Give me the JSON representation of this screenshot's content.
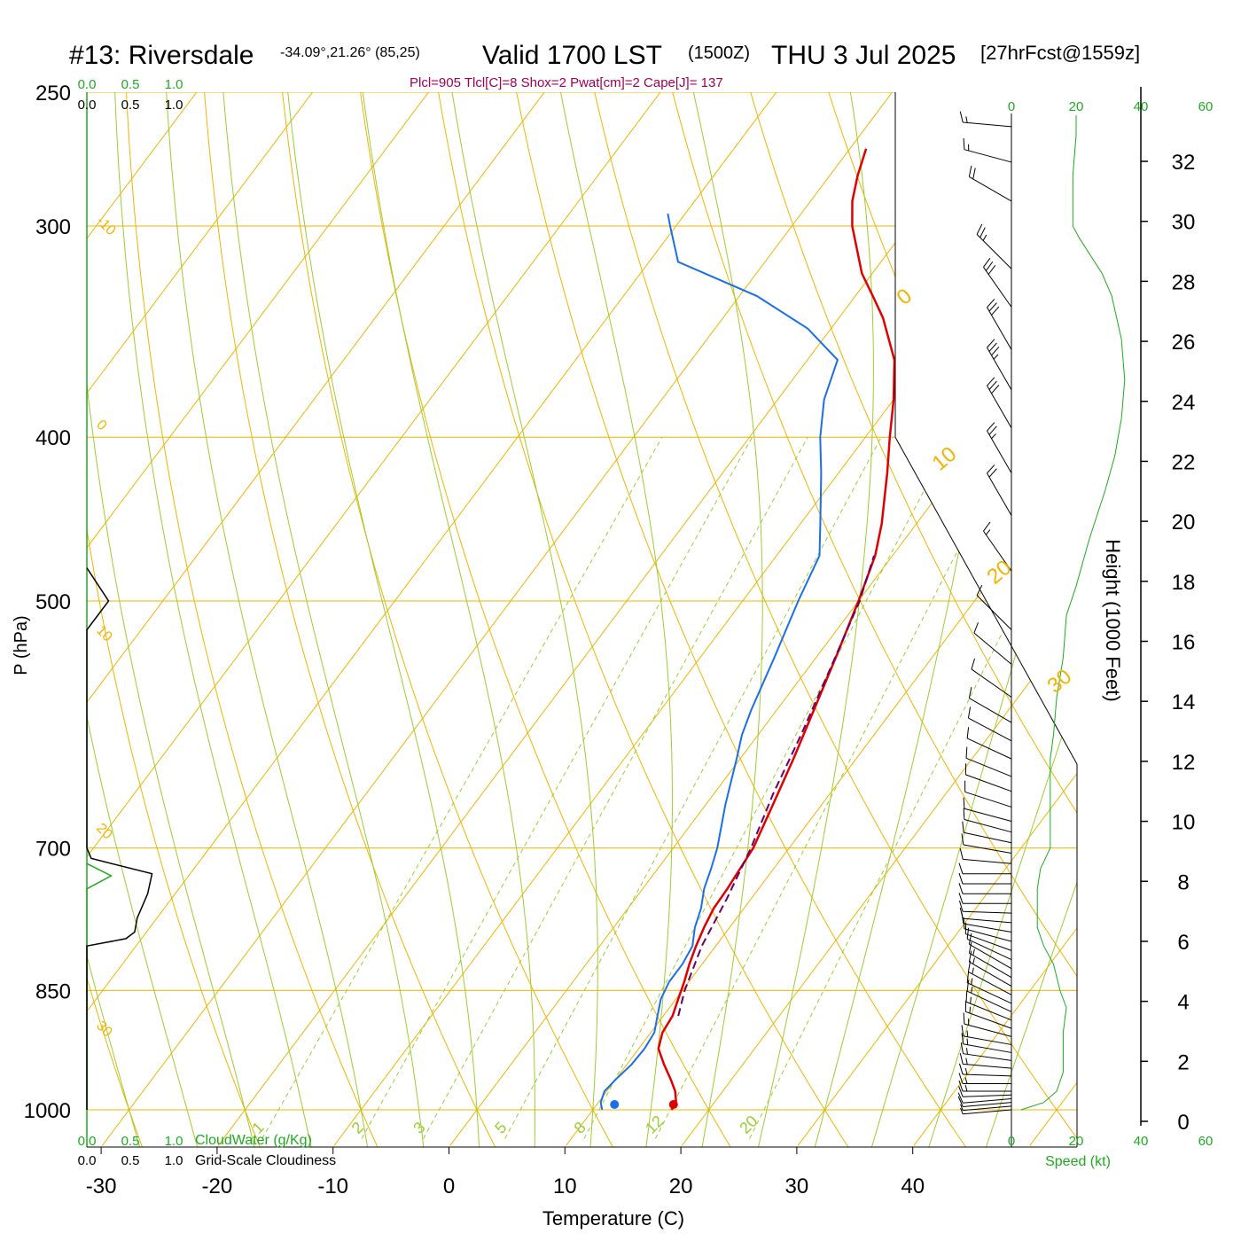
{
  "header": {
    "station": "#13: Riversdale",
    "coords": "-34.09°,21.26° (85,25)",
    "valid": "Valid 1700 LST",
    "zulu": "(1500Z)",
    "date": "THU 3 Jul 2025",
    "forecast": "[27hrFcst@1559z]",
    "indices": "Plcl=905 Tlcl[C]=8 Shox=2 Pwat[cm]=2 Cape[J]= 137"
  },
  "colors": {
    "temperature": "#e00000",
    "dewpoint": "#1a6fe8",
    "parcel": "#660066",
    "isobar_isotherm": "#f0b400",
    "adiabat": "#9acd32",
    "cloudwater": "#1faa1f",
    "indices_text": "#a0005a",
    "wind": "#000000"
  },
  "chart_data": {
    "type": "skew-t",
    "xlabel": "Temperature (C)",
    "ylabel": "P (hPa)",
    "right_ylabel": "Height (1000 Feet)",
    "x_ticks": [
      "-30",
      "-20",
      "-10",
      "0",
      "10",
      "20",
      "30",
      "40"
    ],
    "x_tick_values": [
      -30,
      -20,
      -10,
      0,
      10,
      20,
      30,
      40
    ],
    "y_ticks": [
      "250",
      "300",
      "400",
      "500",
      "700",
      "850",
      "1000"
    ],
    "y_tick_values": [
      250,
      300,
      400,
      500,
      700,
      850,
      1000
    ],
    "height_ticks": [
      "0",
      "2",
      "4",
      "6",
      "8",
      "10",
      "12",
      "14",
      "16",
      "18",
      "20",
      "22",
      "24",
      "26",
      "28",
      "30",
      "32"
    ],
    "height_tick_values": [
      0,
      2,
      4,
      6,
      8,
      10,
      12,
      14,
      16,
      18,
      20,
      22,
      24,
      26,
      28,
      30,
      32
    ],
    "dry_adiabat_labels": [
      "-10",
      "0",
      "10",
      "20",
      "30",
      "0",
      "10",
      "20",
      "30"
    ],
    "mixing_ratio_labels": [
      "1",
      "2",
      "3",
      "5",
      "8",
      "12",
      "20"
    ],
    "cloud_scale": {
      "cloudwater_ticks": [
        "0.0",
        "0.5",
        "1.0"
      ],
      "cloudiness_ticks": [
        "0.0",
        "0.5",
        "1.0"
      ],
      "cloudwater_label": "CloudWater (g/Kg)",
      "cloudiness_label": "Grid-Scale Cloudiness"
    },
    "speed_scale": {
      "ticks": [
        "0",
        "20",
        "40",
        "60"
      ],
      "label": "Speed (kt)"
    },
    "series": [
      {
        "name": "Temperature",
        "points": [
          [
            1000,
            16.8
          ],
          [
            990,
            16.7
          ],
          [
            975,
            15.9
          ],
          [
            960,
            14.8
          ],
          [
            940,
            13.2
          ],
          [
            920,
            11.7
          ],
          [
            900,
            11.0
          ],
          [
            880,
            10.8
          ],
          [
            860,
            10.2
          ],
          [
            840,
            9.6
          ],
          [
            820,
            8.9
          ],
          [
            800,
            8.3
          ],
          [
            780,
            7.8
          ],
          [
            760,
            7.4
          ],
          [
            740,
            7.3
          ],
          [
            720,
            7.1
          ],
          [
            700,
            6.9
          ],
          [
            660,
            5.8
          ],
          [
            620,
            4.6
          ],
          [
            580,
            3.2
          ],
          [
            540,
            1.7
          ],
          [
            500,
            0.0
          ],
          [
            470,
            -1.5
          ],
          [
            450,
            -3.0
          ],
          [
            420,
            -5.8
          ],
          [
            400,
            -7.9
          ],
          [
            380,
            -10.0
          ],
          [
            360,
            -12.5
          ],
          [
            340,
            -16.2
          ],
          [
            330,
            -18.5
          ],
          [
            320,
            -20.9
          ],
          [
            300,
            -24.8
          ],
          [
            290,
            -26.4
          ],
          [
            280,
            -27.6
          ],
          [
            270,
            -28.6
          ]
        ]
      },
      {
        "name": "Dewpoint",
        "points": [
          [
            1000,
            10.8
          ],
          [
            990,
            10.2
          ],
          [
            975,
            9.8
          ],
          [
            960,
            10.0
          ],
          [
            940,
            10.4
          ],
          [
            920,
            10.5
          ],
          [
            900,
            10.3
          ],
          [
            880,
            9.5
          ],
          [
            860,
            8.7
          ],
          [
            840,
            8.3
          ],
          [
            820,
            8.3
          ],
          [
            800,
            8.0
          ],
          [
            780,
            7.0
          ],
          [
            760,
            6.3
          ],
          [
            740,
            5.3
          ],
          [
            720,
            4.6
          ],
          [
            700,
            3.8
          ],
          [
            660,
            1.7
          ],
          [
            620,
            -0.3
          ],
          [
            600,
            -1.4
          ],
          [
            580,
            -2.2
          ],
          [
            540,
            -3.6
          ],
          [
            500,
            -5.2
          ],
          [
            470,
            -6.3
          ],
          [
            450,
            -8.3
          ],
          [
            420,
            -11.5
          ],
          [
            400,
            -13.9
          ],
          [
            380,
            -16.0
          ],
          [
            360,
            -17.4
          ],
          [
            345,
            -22.0
          ],
          [
            330,
            -28.5
          ],
          [
            315,
            -37.5
          ],
          [
            300,
            -40.5
          ],
          [
            295,
            -41.5
          ]
        ]
      },
      {
        "name": "Parcel",
        "points": [
          [
            880,
            11.3
          ],
          [
            850,
            10.2
          ],
          [
            800,
            8.8
          ],
          [
            750,
            7.9
          ],
          [
            700,
            6.7
          ],
          [
            650,
            5.1
          ],
          [
            600,
            3.7
          ],
          [
            550,
            2.0
          ],
          [
            500,
            0.1
          ],
          [
            470,
            -1.6
          ]
        ]
      }
    ],
    "cloudwater_profile": [
      [
        1000,
        0.0
      ],
      [
        740,
        0.0
      ],
      [
        727,
        0.28
      ],
      [
        715,
        0.0
      ]
    ],
    "cloudiness_profile": [
      [
        1000,
        0.0
      ],
      [
        800,
        0.0
      ],
      [
        792,
        0.45
      ],
      [
        785,
        0.55
      ],
      [
        770,
        0.58
      ],
      [
        745,
        0.7
      ],
      [
        725,
        0.75
      ],
      [
        710,
        0.05
      ],
      [
        700,
        0.0
      ],
      [
        520,
        0.0
      ],
      [
        500,
        0.25
      ],
      [
        478,
        0.0
      ]
    ],
    "wind_speed_profile": [
      [
        1000,
        3
      ],
      [
        990,
        10
      ],
      [
        975,
        14
      ],
      [
        950,
        16
      ],
      [
        920,
        16
      ],
      [
        900,
        16
      ],
      [
        870,
        17
      ],
      [
        850,
        15
      ],
      [
        820,
        13
      ],
      [
        800,
        10
      ],
      [
        780,
        8
      ],
      [
        760,
        8
      ],
      [
        740,
        8
      ],
      [
        720,
        9
      ],
      [
        700,
        12
      ],
      [
        680,
        12
      ],
      [
        650,
        12
      ],
      [
        620,
        12
      ],
      [
        600,
        13
      ],
      [
        570,
        14
      ],
      [
        540,
        16
      ],
      [
        510,
        17
      ],
      [
        490,
        20
      ],
      [
        460,
        24
      ],
      [
        430,
        29
      ],
      [
        410,
        32
      ],
      [
        390,
        34
      ],
      [
        370,
        35
      ],
      [
        350,
        34
      ],
      [
        330,
        31
      ],
      [
        320,
        28
      ],
      [
        305,
        21
      ],
      [
        300,
        19
      ],
      [
        290,
        19
      ],
      [
        280,
        19
      ],
      [
        265,
        20
      ],
      [
        258,
        20
      ]
    ],
    "wind_barbs": [
      {
        "p": 1000,
        "dir": 265,
        "spd": 5
      },
      {
        "p": 995,
        "dir": 265,
        "spd": 5
      },
      {
        "p": 990,
        "dir": 265,
        "spd": 10
      },
      {
        "p": 985,
        "dir": 265,
        "spd": 10
      },
      {
        "p": 980,
        "dir": 268,
        "spd": 10
      },
      {
        "p": 975,
        "dir": 270,
        "spd": 15
      },
      {
        "p": 965,
        "dir": 270,
        "spd": 15
      },
      {
        "p": 955,
        "dir": 272,
        "spd": 15
      },
      {
        "p": 945,
        "dir": 275,
        "spd": 15
      },
      {
        "p": 935,
        "dir": 278,
        "spd": 15
      },
      {
        "p": 925,
        "dir": 280,
        "spd": 15
      },
      {
        "p": 915,
        "dir": 280,
        "spd": 15
      },
      {
        "p": 905,
        "dir": 285,
        "spd": 15
      },
      {
        "p": 895,
        "dir": 290,
        "spd": 15
      },
      {
        "p": 885,
        "dir": 292,
        "spd": 15
      },
      {
        "p": 875,
        "dir": 295,
        "spd": 15
      },
      {
        "p": 865,
        "dir": 295,
        "spd": 15
      },
      {
        "p": 855,
        "dir": 298,
        "spd": 15
      },
      {
        "p": 845,
        "dir": 300,
        "spd": 15
      },
      {
        "p": 835,
        "dir": 300,
        "spd": 15
      },
      {
        "p": 825,
        "dir": 300,
        "spd": 10
      },
      {
        "p": 815,
        "dir": 295,
        "spd": 10
      },
      {
        "p": 805,
        "dir": 290,
        "spd": 10
      },
      {
        "p": 795,
        "dir": 285,
        "spd": 10
      },
      {
        "p": 785,
        "dir": 280,
        "spd": 10
      },
      {
        "p": 775,
        "dir": 275,
        "spd": 10
      },
      {
        "p": 765,
        "dir": 272,
        "spd": 10
      },
      {
        "p": 755,
        "dir": 270,
        "spd": 10
      },
      {
        "p": 745,
        "dir": 270,
        "spd": 10
      },
      {
        "p": 735,
        "dir": 270,
        "spd": 10
      },
      {
        "p": 725,
        "dir": 270,
        "spd": 10
      },
      {
        "p": 715,
        "dir": 275,
        "spd": 10
      },
      {
        "p": 705,
        "dir": 280,
        "spd": 10
      },
      {
        "p": 695,
        "dir": 282,
        "spd": 10
      },
      {
        "p": 685,
        "dir": 285,
        "spd": 10
      },
      {
        "p": 675,
        "dir": 285,
        "spd": 10
      },
      {
        "p": 662,
        "dir": 288,
        "spd": 10
      },
      {
        "p": 648,
        "dir": 290,
        "spd": 10
      },
      {
        "p": 635,
        "dir": 292,
        "spd": 10
      },
      {
        "p": 620,
        "dir": 295,
        "spd": 10
      },
      {
        "p": 605,
        "dir": 298,
        "spd": 10
      },
      {
        "p": 590,
        "dir": 300,
        "spd": 10
      },
      {
        "p": 570,
        "dir": 305,
        "spd": 10
      },
      {
        "p": 545,
        "dir": 310,
        "spd": 10
      },
      {
        "p": 520,
        "dir": 315,
        "spd": 10
      },
      {
        "p": 480,
        "dir": 325,
        "spd": 15
      },
      {
        "p": 445,
        "dir": 330,
        "spd": 20
      },
      {
        "p": 420,
        "dir": 330,
        "spd": 25
      },
      {
        "p": 395,
        "dir": 330,
        "spd": 30
      },
      {
        "p": 375,
        "dir": 330,
        "spd": 35
      },
      {
        "p": 355,
        "dir": 330,
        "spd": 30
      },
      {
        "p": 335,
        "dir": 325,
        "spd": 30
      },
      {
        "p": 318,
        "dir": 315,
        "spd": 25
      },
      {
        "p": 290,
        "dir": 300,
        "spd": 20
      },
      {
        "p": 275,
        "dir": 285,
        "spd": 15
      },
      {
        "p": 262,
        "dir": 275,
        "spd": 15
      }
    ]
  }
}
